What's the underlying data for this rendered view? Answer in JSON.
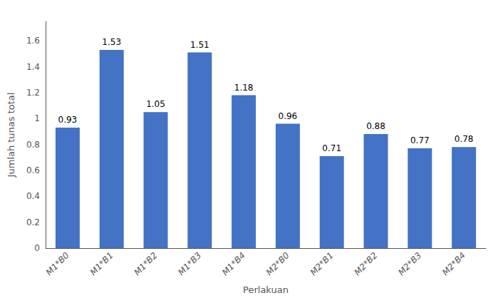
{
  "chart_data": {
    "type": "bar",
    "categories": [
      "M1*B0",
      "M1*B1",
      "M1*B2",
      "M1*B3",
      "M1*B4",
      "M2*B0",
      "M2*B1",
      "M2*B2",
      "M2*B3",
      "M2*B4"
    ],
    "values": [
      0.93,
      1.53,
      1.05,
      1.51,
      1.18,
      0.96,
      0.71,
      0.88,
      0.77,
      0.78
    ],
    "color": "#4472C4",
    "xlabel": "Perlakuan",
    "ylabel": "Jumlah tunas total",
    "ylim": [
      0,
      1.75
    ],
    "yticks": [
      0,
      0.2,
      0.4,
      0.6,
      0.8,
      1.0,
      1.2,
      1.4,
      1.6
    ],
    "grid": false,
    "data_labels": true
  }
}
